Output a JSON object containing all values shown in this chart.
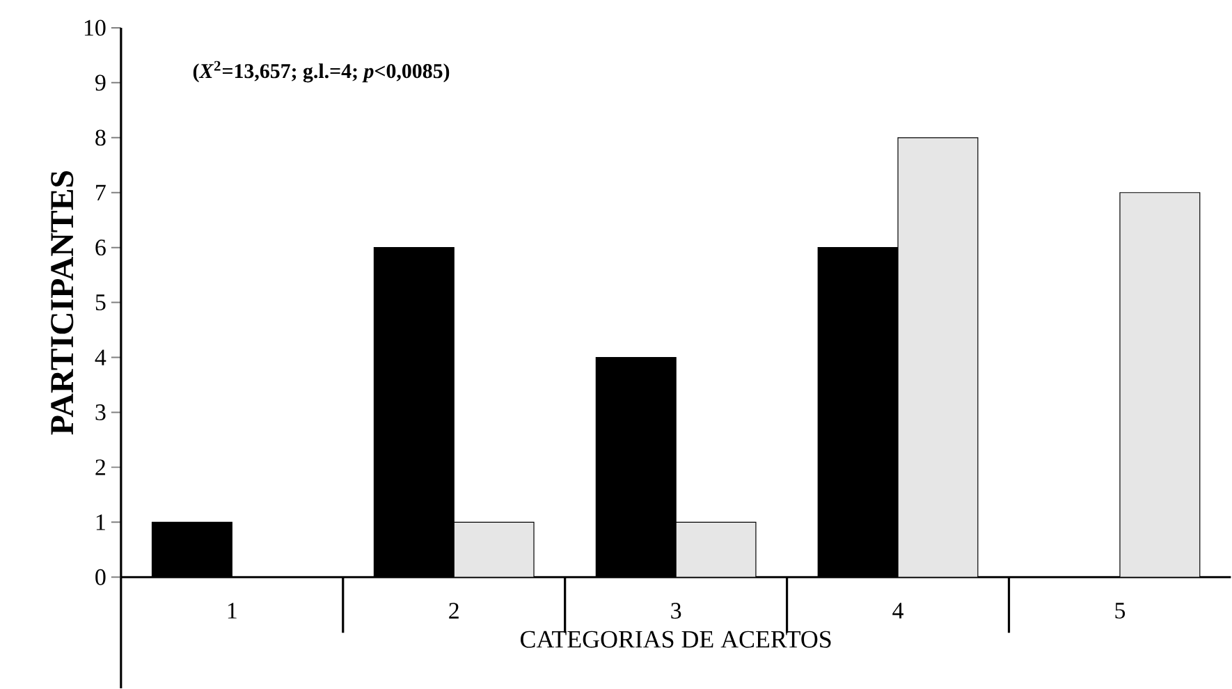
{
  "chart_data": {
    "type": "bar",
    "xlabel": "CATEGORIAS DE ACERTOS",
    "ylabel": "PARTICIPANTES",
    "categories": [
      "1",
      "2",
      "3",
      "4",
      "5"
    ],
    "series": [
      {
        "color": "#000000",
        "values": [
          1,
          6,
          4,
          6,
          0
        ]
      },
      {
        "color": "#e6e6e6",
        "values": [
          0,
          1,
          1,
          8,
          7
        ]
      }
    ],
    "ylim": [
      0,
      10
    ],
    "yticks": [
      0,
      1,
      2,
      3,
      4,
      5,
      6,
      7,
      8,
      9,
      10
    ],
    "annotations": [
      "**(*X*$^{2}$=13,657; g.l.=4; *p*<0,0085)**"
    ]
  }
}
